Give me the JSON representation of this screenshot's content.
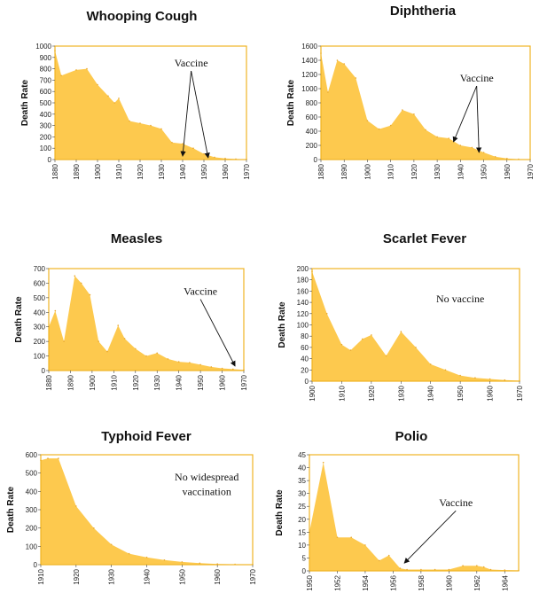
{
  "chart_data": [
    {
      "type": "area",
      "title": "Whooping Cough",
      "ylabel": "Death Rate",
      "xlabel": "",
      "ylim": [
        0,
        1000
      ],
      "yticks": [
        0,
        100,
        200,
        300,
        400,
        500,
        600,
        700,
        800,
        900,
        1000
      ],
      "xlim": [
        1880,
        1970
      ],
      "xticks": [
        1880,
        1890,
        1900,
        1910,
        1920,
        1930,
        1940,
        1950,
        1960,
        1970
      ],
      "color": "#fdc94e",
      "x": [
        1880,
        1883,
        1890,
        1895,
        1900,
        1905,
        1908,
        1910,
        1915,
        1920,
        1925,
        1930,
        1935,
        1940,
        1945,
        1950,
        1955,
        1960,
        1965,
        1970
      ],
      "y": [
        960,
        740,
        790,
        800,
        660,
        560,
        500,
        540,
        340,
        320,
        300,
        270,
        150,
        140,
        100,
        50,
        20,
        10,
        5,
        2
      ],
      "annotations": [
        {
          "text": "Vaccine",
          "x": 1944,
          "y": 820,
          "arrows": [
            [
              1940,
              30
            ],
            [
              1952,
              15
            ]
          ]
        }
      ]
    },
    {
      "type": "area",
      "title": "Diphtheria",
      "ylabel": "Death Rate",
      "xlabel": "",
      "ylim": [
        0,
        1600
      ],
      "yticks": [
        0,
        200,
        400,
        600,
        800,
        1000,
        1200,
        1400,
        1600
      ],
      "xlim": [
        1880,
        1970
      ],
      "xticks": [
        1880,
        1890,
        1900,
        1910,
        1920,
        1930,
        1940,
        1950,
        1960,
        1970
      ],
      "color": "#fdc94e",
      "x": [
        1880,
        1883,
        1887,
        1890,
        1895,
        1900,
        1905,
        1910,
        1915,
        1920,
        1925,
        1930,
        1935,
        1940,
        1945,
        1950,
        1955,
        1960,
        1965,
        1970
      ],
      "y": [
        1500,
        950,
        1400,
        1350,
        1150,
        550,
        430,
        480,
        700,
        640,
        420,
        320,
        300,
        200,
        170,
        100,
        40,
        15,
        5,
        2
      ],
      "annotations": [
        {
          "text": "Vaccine",
          "x": 1947,
          "y": 1100,
          "arrows": [
            [
              1937,
              250
            ],
            [
              1948,
              100
            ]
          ]
        }
      ]
    },
    {
      "type": "area",
      "title": "Measles",
      "ylabel": "Death Rate",
      "xlabel": "",
      "ylim": [
        0,
        700
      ],
      "yticks": [
        0,
        100,
        200,
        300,
        400,
        500,
        600,
        700
      ],
      "xlim": [
        1880,
        1970
      ],
      "xticks": [
        1880,
        1890,
        1900,
        1910,
        1920,
        1930,
        1940,
        1950,
        1960,
        1970
      ],
      "color": "#fdc94e",
      "x": [
        1880,
        1883,
        1887,
        1892,
        1895,
        1899,
        1903,
        1907,
        1912,
        1915,
        1920,
        1925,
        1930,
        1935,
        1940,
        1945,
        1950,
        1955,
        1960,
        1965,
        1970
      ],
      "y": [
        300,
        410,
        200,
        650,
        600,
        520,
        200,
        130,
        310,
        220,
        150,
        100,
        120,
        80,
        60,
        55,
        40,
        25,
        15,
        10,
        5
      ],
      "annotations": [
        {
          "text": "Vaccine",
          "x": 1950,
          "y": 520,
          "arrows": [
            [
              1966,
              30
            ]
          ]
        }
      ]
    },
    {
      "type": "area",
      "title": "Scarlet Fever",
      "ylabel": "Death Rate",
      "xlabel": "",
      "ylim": [
        0,
        200
      ],
      "yticks": [
        0,
        20,
        40,
        60,
        80,
        100,
        120,
        140,
        160,
        180,
        200
      ],
      "xlim": [
        1900,
        1970
      ],
      "xticks": [
        1900,
        1910,
        1920,
        1930,
        1940,
        1950,
        1960,
        1970
      ],
      "color": "#fdc94e",
      "x": [
        1900,
        1905,
        1910,
        1913,
        1917,
        1920,
        1925,
        1930,
        1935,
        1940,
        1945,
        1950,
        1955,
        1960,
        1965,
        1970
      ],
      "y": [
        195,
        120,
        65,
        55,
        75,
        82,
        45,
        88,
        60,
        30,
        20,
        10,
        6,
        4,
        2,
        1
      ],
      "annotations": [
        {
          "text": "No vaccine",
          "x": 1950,
          "y": 140,
          "arrows": []
        }
      ]
    },
    {
      "type": "area",
      "title": "Typhoid Fever",
      "ylabel": "Death Rate",
      "xlabel": "",
      "ylim": [
        0,
        600
      ],
      "yticks": [
        0,
        100,
        200,
        300,
        400,
        500,
        600
      ],
      "xlim": [
        1910,
        1970
      ],
      "xticks": [
        1910,
        1920,
        1930,
        1940,
        1950,
        1960,
        1970
      ],
      "color": "#fdc94e",
      "x": [
        1910,
        1912,
        1915,
        1920,
        1925,
        1930,
        1935,
        1940,
        1945,
        1950,
        1955,
        1960,
        1965,
        1970
      ],
      "y": [
        570,
        580,
        580,
        320,
        200,
        110,
        60,
        40,
        25,
        15,
        8,
        4,
        2,
        1
      ],
      "annotations": [
        {
          "text": "No widespread",
          "x": 1957,
          "y": 460,
          "arrows": []
        },
        {
          "text": "vaccination",
          "x": 1957,
          "y": 380,
          "arrows": []
        }
      ]
    },
    {
      "type": "area",
      "title": "Polio",
      "ylabel": "Death Rate",
      "xlabel": "",
      "ylim": [
        0,
        45
      ],
      "yticks": [
        0,
        5,
        10,
        15,
        20,
        25,
        30,
        35,
        40,
        45
      ],
      "xlim": [
        1950,
        1965
      ],
      "xticks": [
        1950,
        1952,
        1954,
        1956,
        1958,
        1960,
        1962,
        1964
      ],
      "color": "#fdc94e",
      "x": [
        1950,
        1951,
        1952,
        1953,
        1954,
        1955,
        1955.7,
        1956.5,
        1957,
        1958,
        1959,
        1960,
        1961,
        1962,
        1962.5,
        1963,
        1964,
        1965
      ],
      "y": [
        15,
        42,
        13,
        13,
        10,
        4,
        6,
        1,
        0.5,
        0.5,
        0.5,
        0.5,
        2,
        2,
        1.5,
        0.5,
        0.3,
        0.2
      ],
      "annotations": [
        {
          "text": "Vaccine",
          "x": 1960.5,
          "y": 25,
          "arrows": [
            [
              1956.8,
              3
            ]
          ]
        }
      ]
    }
  ]
}
